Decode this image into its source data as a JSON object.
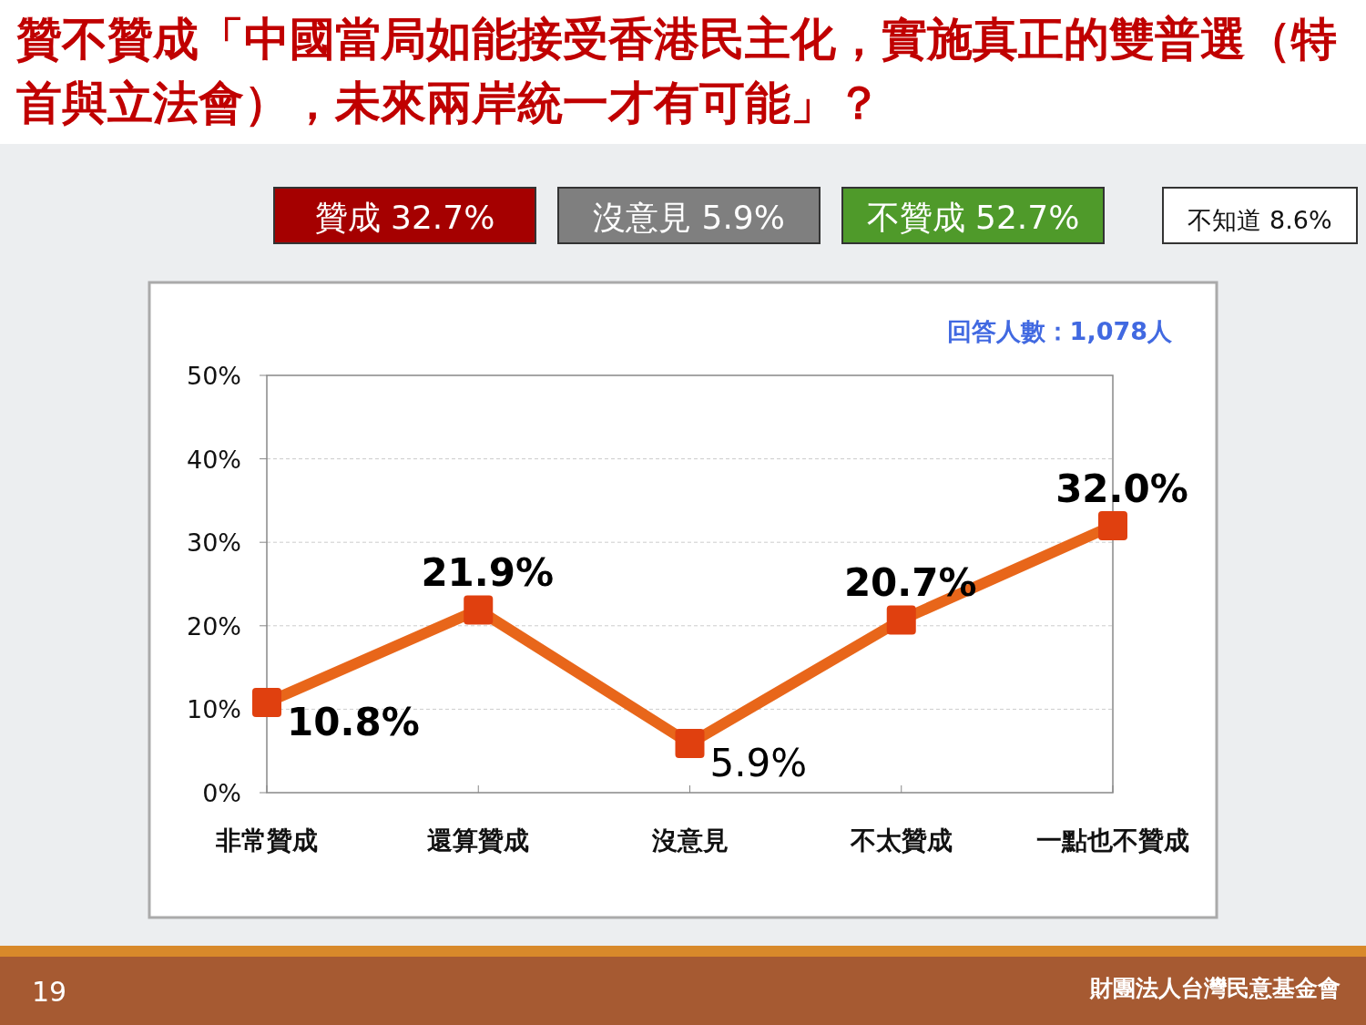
{
  "chart_data": {
    "type": "line",
    "title": "贊不贊成「中國當局如能接受香港民主化，實施真正的雙普選（特首與立法會），未來兩岸統一才有可能」？",
    "categories": [
      "非常贊成",
      "還算贊成",
      "沒意見",
      "不太贊成",
      "一點也不贊成"
    ],
    "series": [
      {
        "color": "#e8661a",
        "values": [
          10.8,
          21.9,
          5.9,
          20.7,
          32.0
        ]
      }
    ],
    "ylim": [
      0,
      50
    ],
    "yticks": [
      {
        "value": 0,
        "label": "0%"
      },
      {
        "value": 10,
        "label": "10%"
      },
      {
        "value": 20,
        "label": "20%"
      },
      {
        "value": 30,
        "label": "30%"
      },
      {
        "value": 40,
        "label": "40%"
      },
      {
        "value": 50,
        "label": "50%"
      }
    ],
    "value_labels": [
      "10.8%",
      "21.9%",
      "5.9%",
      "20.7%",
      "32.0%"
    ],
    "grid": "y",
    "marker": "square",
    "line_style": "solid",
    "annotations": [
      "贊成 32.7%",
      "沒意見 5.9%",
      "不贊成 52.7%",
      "不知道 8.6%",
      "回答人數：1,078人",
      "19",
      "財團法人台灣民意基金會"
    ]
  }
}
